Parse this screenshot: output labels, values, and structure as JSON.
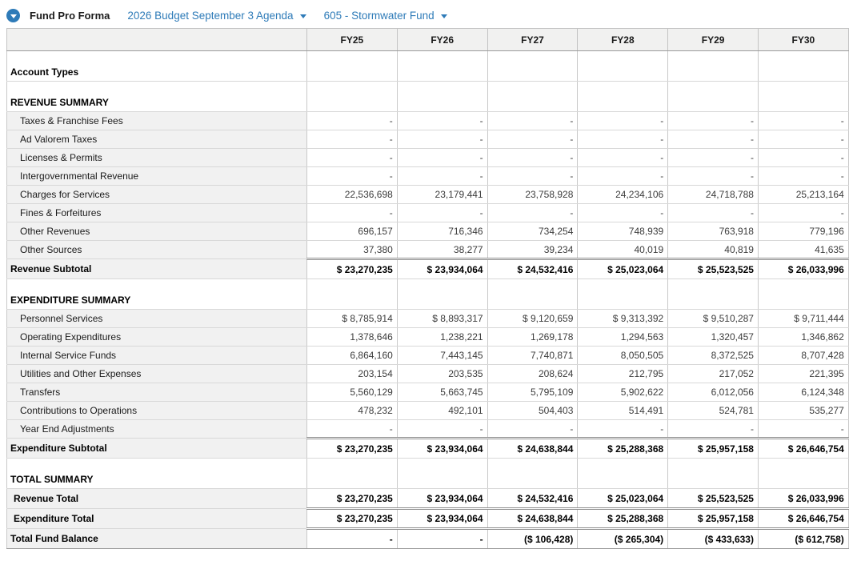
{
  "header": {
    "title": "Fund Pro Forma",
    "budget_dropdown": "2026 Budget September 3 Agenda",
    "fund_dropdown": "605 - Stormwater Fund",
    "toggle_icon": "circle-chevron-down-icon"
  },
  "colors": {
    "accent_blue": "#2e7bb8",
    "header_row_bg": "#f1f1f0",
    "label_cell_bg": "#f1f1f1"
  },
  "table": {
    "columns": [
      "FY25",
      "FY26",
      "FY27",
      "FY28",
      "FY29",
      "FY30"
    ],
    "rows": [
      {
        "type": "spacer"
      },
      {
        "type": "caption",
        "label": "Account Types"
      },
      {
        "type": "spacer"
      },
      {
        "type": "caption",
        "label": "REVENUE SUMMARY"
      },
      {
        "type": "detail",
        "label": "Taxes & Franchise Fees",
        "values": [
          "-",
          "-",
          "-",
          "-",
          "-",
          "-"
        ]
      },
      {
        "type": "detail",
        "label": "Ad Valorem Taxes",
        "values": [
          "-",
          "-",
          "-",
          "-",
          "-",
          "-"
        ]
      },
      {
        "type": "detail",
        "label": "Licenses & Permits",
        "values": [
          "-",
          "-",
          "-",
          "-",
          "-",
          "-"
        ]
      },
      {
        "type": "detail",
        "label": "Intergovernmental Revenue",
        "values": [
          "-",
          "-",
          "-",
          "-",
          "-",
          "-"
        ]
      },
      {
        "type": "detail",
        "label": "Charges for Services",
        "values": [
          "22,536,698",
          "23,179,441",
          "23,758,928",
          "24,234,106",
          "24,718,788",
          "25,213,164"
        ]
      },
      {
        "type": "detail",
        "label": "Fines & Forfeitures",
        "values": [
          "-",
          "-",
          "-",
          "-",
          "-",
          "-"
        ]
      },
      {
        "type": "detail",
        "label": "Other Revenues",
        "values": [
          "696,157",
          "716,346",
          "734,254",
          "748,939",
          "763,918",
          "779,196"
        ]
      },
      {
        "type": "detail",
        "label": "Other Sources",
        "values": [
          "37,380",
          "38,277",
          "39,234",
          "40,019",
          "40,819",
          "41,635"
        ]
      },
      {
        "type": "subtotal",
        "label": "Revenue Subtotal",
        "values": [
          "$ 23,270,235",
          "$ 23,934,064",
          "$ 24,532,416",
          "$ 25,023,064",
          "$ 25,523,525",
          "$ 26,033,996"
        ]
      },
      {
        "type": "spacer"
      },
      {
        "type": "caption",
        "label": "EXPENDITURE SUMMARY"
      },
      {
        "type": "detail",
        "label": "Personnel Services",
        "values": [
          "$ 8,785,914",
          "$ 8,893,317",
          "$ 9,120,659",
          "$ 9,313,392",
          "$ 9,510,287",
          "$ 9,711,444"
        ]
      },
      {
        "type": "detail",
        "label": "Operating Expenditures",
        "values": [
          "1,378,646",
          "1,238,221",
          "1,269,178",
          "1,294,563",
          "1,320,457",
          "1,346,862"
        ]
      },
      {
        "type": "detail",
        "label": "Internal Service Funds",
        "values": [
          "6,864,160",
          "7,443,145",
          "7,740,871",
          "8,050,505",
          "8,372,525",
          "8,707,428"
        ]
      },
      {
        "type": "detail",
        "label": "Utilities and Other Expenses",
        "values": [
          "203,154",
          "203,535",
          "208,624",
          "212,795",
          "217,052",
          "221,395"
        ]
      },
      {
        "type": "detail",
        "label": "Transfers",
        "values": [
          "5,560,129",
          "5,663,745",
          "5,795,109",
          "5,902,622",
          "6,012,056",
          "6,124,348"
        ]
      },
      {
        "type": "detail",
        "label": "Contributions to Operations",
        "values": [
          "478,232",
          "492,101",
          "504,403",
          "514,491",
          "524,781",
          "535,277"
        ]
      },
      {
        "type": "detail",
        "label": "Year End Adjustments",
        "values": [
          "-",
          "-",
          "-",
          "-",
          "-",
          "-"
        ]
      },
      {
        "type": "subtotal",
        "label": "Expenditure Subtotal",
        "values": [
          "$ 23,270,235",
          "$ 23,934,064",
          "$ 24,638,844",
          "$ 25,288,368",
          "$ 25,957,158",
          "$ 26,646,754"
        ]
      },
      {
        "type": "spacer"
      },
      {
        "type": "caption",
        "label": "TOTAL SUMMARY"
      },
      {
        "type": "total",
        "label": "Revenue Total",
        "values": [
          "$ 23,270,235",
          "$ 23,934,064",
          "$ 24,532,416",
          "$ 25,023,064",
          "$ 25,523,525",
          "$ 26,033,996"
        ]
      },
      {
        "type": "total",
        "double_top": true,
        "label": "Expenditure Total",
        "values": [
          "$ 23,270,235",
          "$ 23,934,064",
          "$ 24,638,844",
          "$ 25,288,368",
          "$ 25,957,158",
          "$ 26,646,754"
        ]
      },
      {
        "type": "grand",
        "label": "Total Fund Balance",
        "values": [
          "-",
          "-",
          "($ 106,428)",
          "($ 265,304)",
          "($ 433,633)",
          "($ 612,758)"
        ]
      }
    ]
  }
}
